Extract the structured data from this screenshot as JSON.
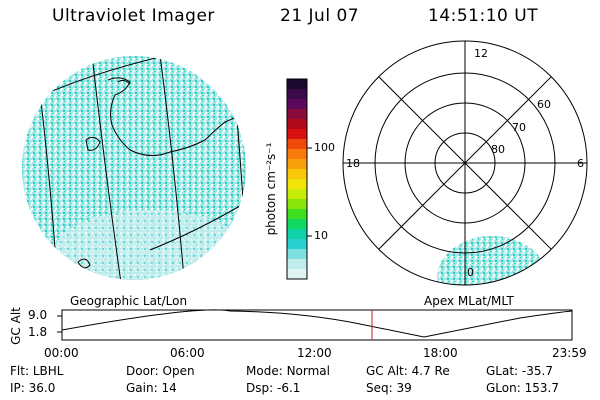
{
  "header": {
    "instrument": "Ultraviolet Imager",
    "date": "21 Jul 07",
    "time": "14:51:10 UT"
  },
  "geo_panel": {
    "label": "Geographic Lat/Lon"
  },
  "polar_panel": {
    "label": "Apex MLat/MLT",
    "mlt_labels": {
      "top": "12",
      "left": "18",
      "right": "6",
      "bottom": "0"
    },
    "lat_labels": [
      "60",
      "70",
      "80"
    ]
  },
  "colorbar": {
    "unit_label": "photon cm⁻²s⁻¹",
    "tick_labels": [
      "100",
      "10"
    ],
    "colors": [
      "#1a0a2e",
      "#3a0a4a",
      "#5a0a5a",
      "#8a0a3a",
      "#b00a1a",
      "#d81010",
      "#f04a0a",
      "#f87a0a",
      "#f8a00a",
      "#f8c80a",
      "#f0e40a",
      "#c8ec0a",
      "#8ae60a",
      "#40de20",
      "#10d860",
      "#10d2a8",
      "#28d0d0",
      "#7fe0e0",
      "#c0ecec",
      "#e0f4f4"
    ]
  },
  "altitude_plot": {
    "ylabel": "GC Alt",
    "y_ticks": [
      "9.0",
      "1.8"
    ],
    "x_ticks": [
      "00:00",
      "06:00",
      "12:00",
      "18:00",
      "23:59"
    ],
    "marker_color": "#c02020"
  },
  "footer": {
    "row1": [
      {
        "label": "Flt:",
        "value": "LBHL"
      },
      {
        "label": "Door:",
        "value": "Open"
      },
      {
        "label": "Mode:",
        "value": "Normal"
      },
      {
        "label": "GC Alt:",
        "value": "4.7 Re"
      },
      {
        "label": "GLat:",
        "value": "-35.7"
      }
    ],
    "row2": [
      {
        "label": "IP:",
        "value": "36.0"
      },
      {
        "label": "Gain:",
        "value": "14"
      },
      {
        "label": "Dsp:",
        "value": "-6.1"
      },
      {
        "label": "Seq:",
        "value": "39"
      },
      {
        "label": "GLon:",
        "value": "153.7"
      }
    ]
  }
}
